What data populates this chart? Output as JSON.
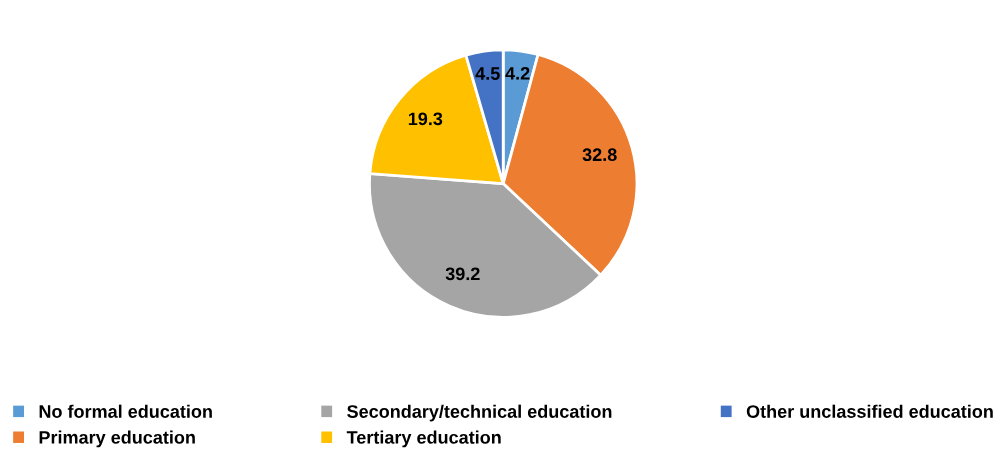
{
  "chart_data": {
    "type": "pie",
    "categories": [
      "No formal education",
      "Primary education",
      "Secondary/technical education",
      "Tertiary education",
      "Other unclassified education"
    ],
    "values": [
      4.2,
      32.8,
      39.2,
      19.3,
      4.5
    ],
    "colors": [
      "#5b9bd5",
      "#ed7d31",
      "#a5a5a5",
      "#ffc000",
      "#4472c4"
    ],
    "data_labels": true,
    "legend": "bottom"
  }
}
